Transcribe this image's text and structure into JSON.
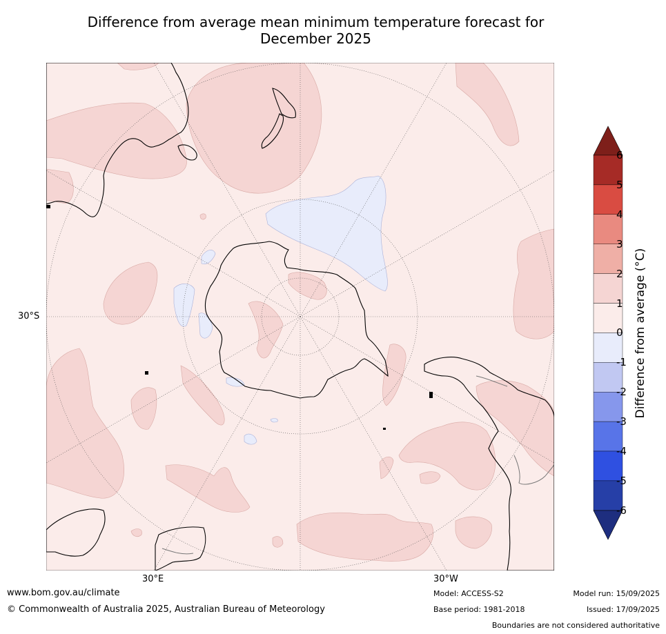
{
  "title_line1": "Difference from average mean minimum temperature forecast for",
  "title_line2": "December 2025",
  "map": {
    "lat_label": "30°S",
    "lon_label_left": "30°E",
    "lon_label_right": "30°W"
  },
  "colorbar": {
    "title": "Difference from average (°C)",
    "ticks": [
      "6",
      "5",
      "4",
      "3",
      "2",
      "1",
      "0",
      "-1",
      "-2",
      "-3",
      "-4",
      "-5",
      "-6"
    ],
    "colors": [
      "#a62b26",
      "#d94c42",
      "#e98a80",
      "#efafa6",
      "#f5d5d3",
      "#fbecea",
      "#e8ecfb",
      "#c1c8f2",
      "#8697ec",
      "#5874e8",
      "#2f50e1",
      "#263fa7"
    ],
    "over_color": "#7e1f1a",
    "under_color": "#1e2e7f"
  },
  "footer": {
    "website": "www.bom.gov.au/climate",
    "copyright": "© Commonwealth of Australia 2025, Australian Bureau of Meteorology",
    "model": "Model: ACCESS-S2",
    "base_period": "Base period: 1981-2018",
    "model_run": "Model run: 15/09/2025",
    "issued": "Issued: 17/09/2025",
    "disclaimer": "Boundaries are not considered authoritative"
  }
}
